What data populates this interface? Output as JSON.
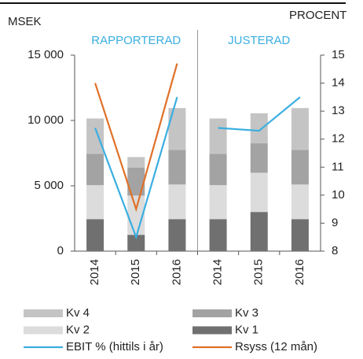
{
  "chart_data": {
    "type": "bar",
    "y_label": "MSEK",
    "y2_label": "PROCENT",
    "panels": [
      {
        "title": "RAPPORTERAD",
        "categories": [
          "2014",
          "2015",
          "2016"
        ]
      },
      {
        "title": "JUSTERAD",
        "categories": [
          "2014",
          "2015",
          "2016"
        ]
      }
    ],
    "ylim": [
      0,
      15000
    ],
    "yticks": [
      0,
      {
        "value": 5000,
        "label": "5 000"
      },
      {
        "value": 10000,
        "label": "10 000"
      },
      {
        "value": 15000,
        "label": "15 000"
      }
    ],
    "y2lim": [
      8,
      15
    ],
    "y2ticks": [
      8,
      9,
      10,
      11,
      12,
      13,
      14,
      15
    ],
    "grid": false,
    "series": [
      {
        "name": "Kv 1",
        "type": "bar",
        "color": "#707070",
        "values": [
          2450,
          1250,
          2450,
          2450,
          3000,
          2450
        ]
      },
      {
        "name": "Kv 2",
        "type": "bar",
        "color": "#dcdcdc",
        "values": [
          2600,
          3000,
          2650,
          2600,
          3000,
          2650
        ]
      },
      {
        "name": "Kv 3",
        "type": "bar",
        "color": "#a3a3a3",
        "values": [
          2400,
          2150,
          2650,
          2400,
          2250,
          2650
        ]
      },
      {
        "name": "Kv 4",
        "type": "bar",
        "color": "#c4c4c4",
        "values": [
          2700,
          800,
          3200,
          2700,
          2300,
          3200
        ]
      },
      {
        "name": "EBIT % (hittils i år)",
        "type": "line",
        "axis": "y2",
        "color": "#3aaee0",
        "values": [
          12.4,
          8.5,
          13.5,
          12.4,
          12.3,
          13.5
        ]
      },
      {
        "name": "Rsyss (12 mån)",
        "type": "line",
        "axis": "y2",
        "color": "#e07028",
        "values": [
          14.0,
          9.5,
          14.7,
          null,
          null,
          null
        ]
      }
    ]
  }
}
